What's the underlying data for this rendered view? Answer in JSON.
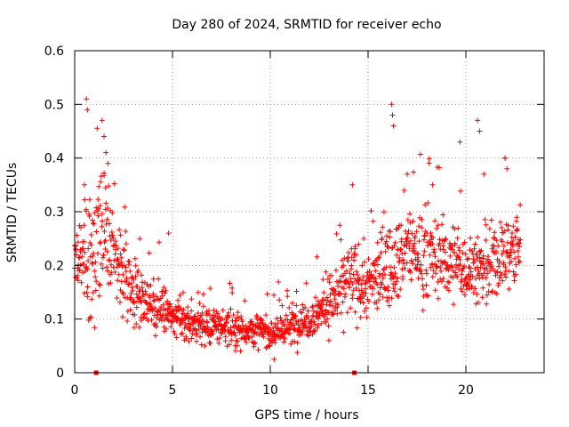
{
  "chart_data": {
    "type": "scatter",
    "title": "Day 280 of 2024, SRMTID for receiver echo",
    "xlabel": "GPS time / hours",
    "ylabel": "SRMTID / TECUs",
    "xlim": [
      0,
      24
    ],
    "ylim": [
      0,
      0.6
    ],
    "xticks": [
      0,
      5,
      10,
      15,
      20
    ],
    "xtick_labels": [
      "0",
      "5",
      "10",
      "15",
      "20"
    ],
    "yticks": [
      0,
      0.1,
      0.2,
      0.3,
      0.4,
      0.5,
      0.6
    ],
    "ytick_labels": [
      "0",
      "0.1",
      "0.2",
      "0.3",
      "0.4",
      "0.5",
      "0.6"
    ],
    "grid": true,
    "marker": "plus",
    "color": "#ff0000",
    "x_range_hours": [
      0,
      22.8
    ],
    "envelope": [
      {
        "x": 0.0,
        "y": 0.2,
        "spread": 0.05
      },
      {
        "x": 0.5,
        "y": 0.2,
        "spread": 0.06
      },
      {
        "x": 1.0,
        "y": 0.22,
        "spread": 0.09
      },
      {
        "x": 1.5,
        "y": 0.24,
        "spread": 0.08
      },
      {
        "x": 2.0,
        "y": 0.23,
        "spread": 0.06
      },
      {
        "x": 2.5,
        "y": 0.18,
        "spread": 0.05
      },
      {
        "x": 3.0,
        "y": 0.15,
        "spread": 0.04
      },
      {
        "x": 3.5,
        "y": 0.14,
        "spread": 0.035
      },
      {
        "x": 4.0,
        "y": 0.12,
        "spread": 0.03
      },
      {
        "x": 4.5,
        "y": 0.12,
        "spread": 0.035
      },
      {
        "x": 5.0,
        "y": 0.1,
        "spread": 0.025
      },
      {
        "x": 6.0,
        "y": 0.09,
        "spread": 0.022
      },
      {
        "x": 7.0,
        "y": 0.09,
        "spread": 0.025
      },
      {
        "x": 8.0,
        "y": 0.085,
        "spread": 0.025
      },
      {
        "x": 9.0,
        "y": 0.08,
        "spread": 0.022
      },
      {
        "x": 10.0,
        "y": 0.075,
        "spread": 0.02
      },
      {
        "x": 11.0,
        "y": 0.085,
        "spread": 0.025
      },
      {
        "x": 12.0,
        "y": 0.1,
        "spread": 0.025
      },
      {
        "x": 13.0,
        "y": 0.13,
        "spread": 0.035
      },
      {
        "x": 14.0,
        "y": 0.17,
        "spread": 0.05
      },
      {
        "x": 15.0,
        "y": 0.16,
        "spread": 0.05
      },
      {
        "x": 16.0,
        "y": 0.2,
        "spread": 0.05
      },
      {
        "x": 17.0,
        "y": 0.23,
        "spread": 0.05
      },
      {
        "x": 18.0,
        "y": 0.22,
        "spread": 0.06
      },
      {
        "x": 19.0,
        "y": 0.21,
        "spread": 0.05
      },
      {
        "x": 20.0,
        "y": 0.2,
        "spread": 0.05
      },
      {
        "x": 21.0,
        "y": 0.19,
        "spread": 0.05
      },
      {
        "x": 22.0,
        "y": 0.22,
        "spread": 0.05
      },
      {
        "x": 22.8,
        "y": 0.24,
        "spread": 0.05
      }
    ],
    "peaks": [
      {
        "x": 0.6,
        "y": 0.51
      },
      {
        "x": 0.65,
        "y": 0.49
      },
      {
        "x": 1.4,
        "y": 0.47
      },
      {
        "x": 1.5,
        "y": 0.44
      },
      {
        "x": 1.6,
        "y": 0.41
      },
      {
        "x": 1.7,
        "y": 0.39
      },
      {
        "x": 0.5,
        "y": 0.35
      },
      {
        "x": 14.2,
        "y": 0.35
      },
      {
        "x": 16.2,
        "y": 0.5
      },
      {
        "x": 16.25,
        "y": 0.48
      },
      {
        "x": 16.3,
        "y": 0.46
      },
      {
        "x": 17.0,
        "y": 0.37
      },
      {
        "x": 19.7,
        "y": 0.43
      },
      {
        "x": 20.6,
        "y": 0.47
      },
      {
        "x": 20.7,
        "y": 0.45
      },
      {
        "x": 22.0,
        "y": 0.4
      },
      {
        "x": 22.1,
        "y": 0.38
      },
      {
        "x": 4.8,
        "y": 0.26
      },
      {
        "x": 18.3,
        "y": 0.35
      },
      {
        "x": 10.2,
        "y": 0.025
      }
    ],
    "bottom_markers": [
      {
        "x": 1.1,
        "y": 0.0
      },
      {
        "x": 14.3,
        "y": 0.0
      }
    ]
  }
}
